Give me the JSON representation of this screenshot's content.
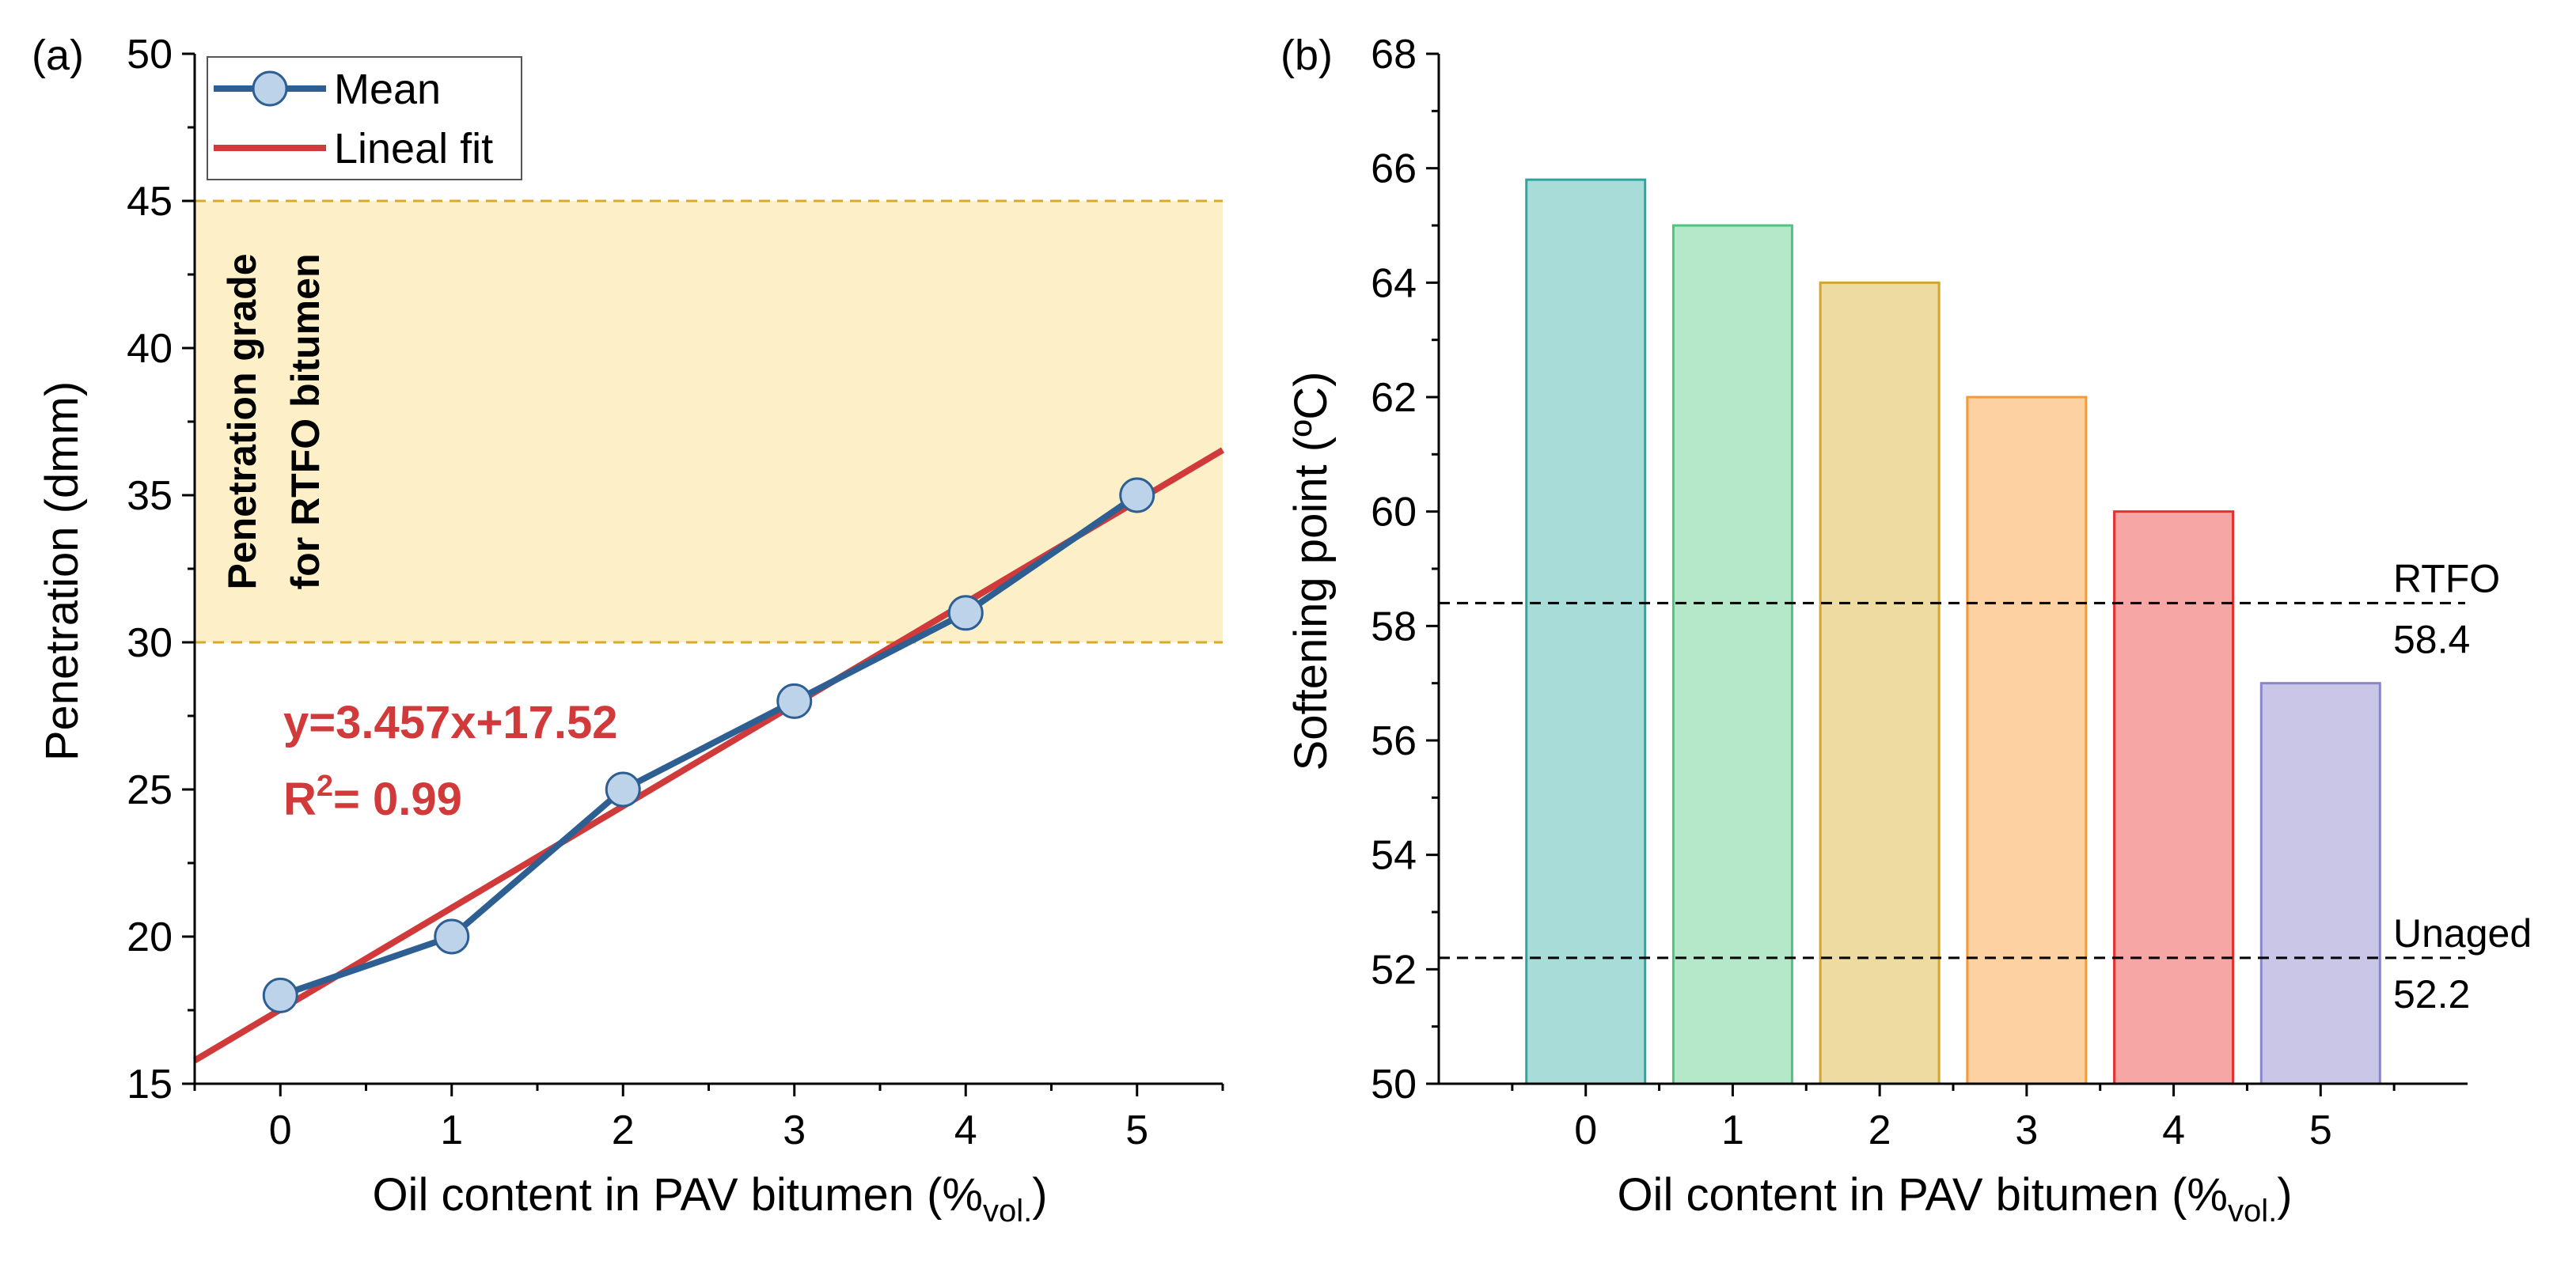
{
  "chart_data": [
    {
      "panel": "(a)",
      "type": "line",
      "title": "",
      "xlabel": "Oil content in PAV bitumen (%",
      "xlabel_sub": "vol.",
      "xlabel_close": ")",
      "ylabel": "Penetration (dmm)",
      "xlim": [
        -0.5,
        5.5
      ],
      "ylim": [
        15,
        50
      ],
      "xticks": [
        0,
        1,
        2,
        3,
        4,
        5
      ],
      "yticks": [
        15,
        20,
        25,
        30,
        35,
        40,
        45,
        50
      ],
      "series": [
        {
          "name": "Mean",
          "x": [
            0,
            1,
            2,
            3,
            4,
            5
          ],
          "y": [
            18,
            20,
            25,
            28,
            31,
            35
          ],
          "color": "#2e5f93",
          "marker_fill": "#bcd3ea"
        },
        {
          "name": "Lineal fit",
          "slope": 3.457,
          "intercept": 17.52,
          "color": "#d03a3a"
        }
      ],
      "band": {
        "y0": 30,
        "y1": 45,
        "fill": "#fdf0c9",
        "line_color": "#d9a928",
        "label_line1": "Penetration grade",
        "label_line2": "for RTFO bitumen"
      },
      "equation": "y=3.457x+17.52",
      "r2_prefix": "R",
      "r2_sup": "2",
      "r2_value": "= 0.99",
      "legend_position": "top-left"
    },
    {
      "panel": "(b)",
      "type": "bar",
      "title": "",
      "xlabel": "Oil content in PAV bitumen (%",
      "xlabel_sub": "vol.",
      "xlabel_close": ")",
      "ylabel": "Softening point (ºC)",
      "categories": [
        "0",
        "1",
        "2",
        "3",
        "4",
        "5"
      ],
      "values": [
        65.8,
        65.0,
        64.0,
        62.0,
        60.0,
        57.0
      ],
      "fill_colors": [
        "#a8dcd9",
        "#b5e8c9",
        "#eedba2",
        "#fdd1a1",
        "#f7a6a6",
        "#c9c6e7"
      ],
      "stroke_colors": [
        "#2fa5a0",
        "#4dc57f",
        "#d4a52a",
        "#f29a3c",
        "#e63030",
        "#8a86cc"
      ],
      "ylim": [
        50,
        68
      ],
      "yticks": [
        50,
        52,
        54,
        56,
        58,
        60,
        62,
        64,
        66,
        68
      ],
      "reference_lines": [
        {
          "label": "RTFO",
          "value_label": "58.4",
          "value": 58.4
        },
        {
          "label": "Unaged",
          "value_label": "52.2",
          "value": 52.2
        }
      ]
    }
  ]
}
